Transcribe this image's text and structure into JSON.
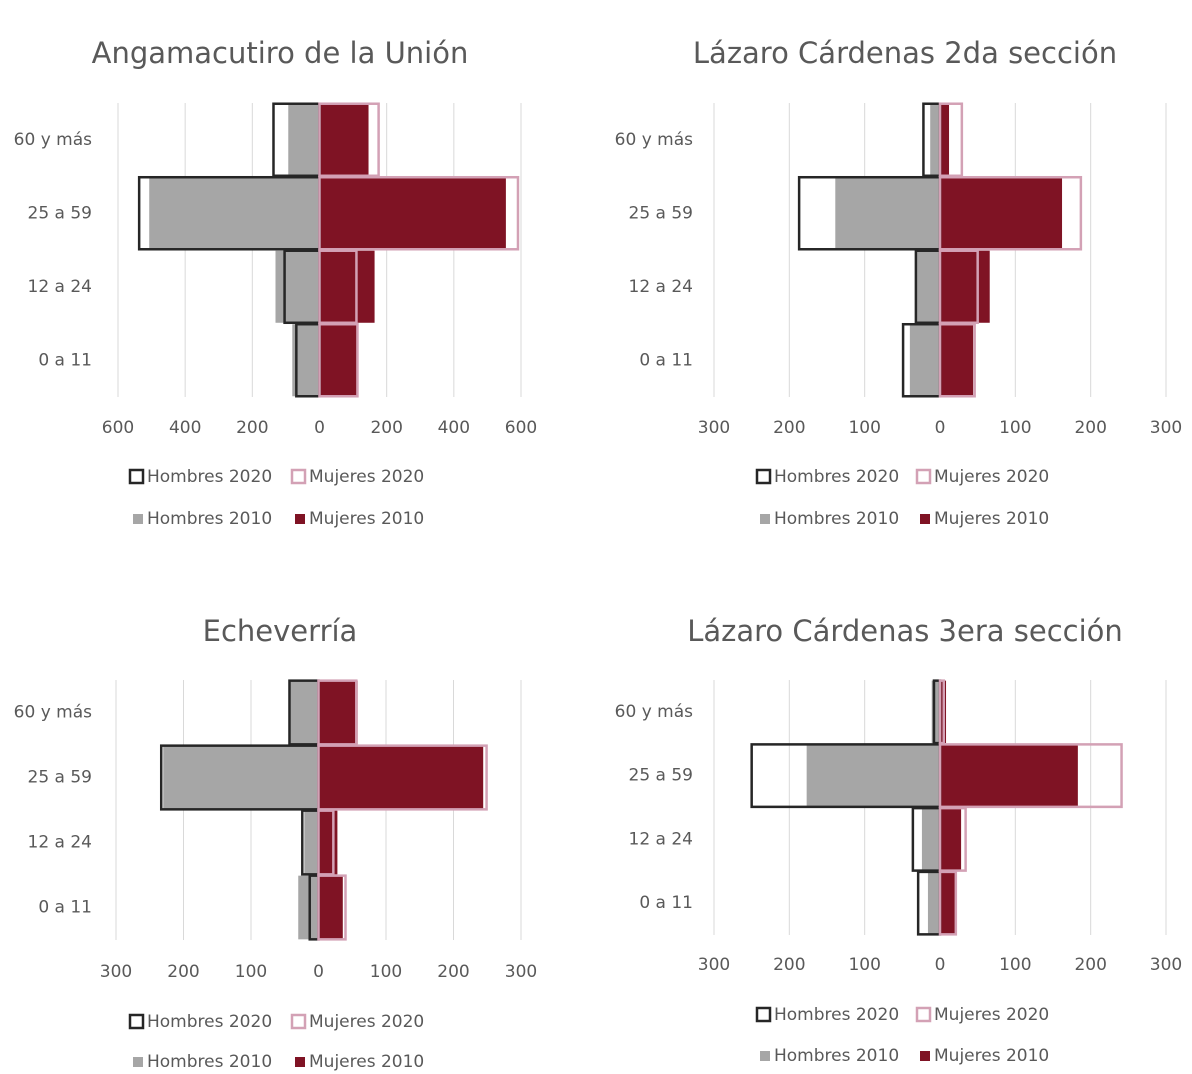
{
  "chart_data": [
    {
      "type": "bar",
      "orientation": "horizontal",
      "title": "Angamacutiro de la Unión",
      "categories": [
        "0 a 11",
        "12 a 24",
        "25 a 59",
        "60 y más"
      ],
      "series": [
        {
          "name": "Hombres 2020",
          "color": "#262626",
          "kind": "outline",
          "values": [
            -69,
            -104,
            -537,
            -137
          ]
        },
        {
          "name": "Mujeres 2020",
          "color": "#d3a1b5",
          "kind": "outline",
          "values": [
            113,
            110,
            591,
            176
          ]
        },
        {
          "name": "Hombres 2010",
          "color": "#a6a6a6",
          "kind": "fill",
          "values": [
            -81,
            -131,
            -507,
            -93
          ]
        },
        {
          "name": "Mujeres 2010",
          "color": "#7f1324",
          "kind": "fill",
          "values": [
            110,
            164,
            555,
            146
          ]
        }
      ],
      "xlim": [
        -600,
        600
      ],
      "xticks": [
        {
          "value": -600,
          "label": "600"
        },
        {
          "value": -400,
          "label": "400"
        },
        {
          "value": -200,
          "label": "200"
        },
        0,
        200,
        400,
        600
      ],
      "grid": true
    },
    {
      "type": "bar",
      "orientation": "horizontal",
      "title": "Lázaro Cárdenas 2da sección",
      "categories": [
        "0 a 11",
        "12 a 24",
        "25 a 59",
        "60 y más"
      ],
      "series": [
        {
          "name": "Hombres 2020",
          "color": "#262626",
          "kind": "outline",
          "values": [
            -49,
            -32,
            -187,
            -22
          ]
        },
        {
          "name": "Mujeres 2020",
          "color": "#d3a1b5",
          "kind": "outline",
          "values": [
            46,
            50,
            187,
            29
          ]
        },
        {
          "name": "Hombres 2010",
          "color": "#a6a6a6",
          "kind": "fill",
          "values": [
            -40,
            -32,
            -139,
            -13
          ]
        },
        {
          "name": "Mujeres 2010",
          "color": "#7f1324",
          "kind": "fill",
          "values": [
            44,
            66,
            162,
            12
          ]
        }
      ],
      "xlim": [
        -300,
        300
      ],
      "xticks": [
        {
          "value": -300,
          "label": "300"
        },
        {
          "value": -200,
          "label": "200"
        },
        {
          "value": -100,
          "label": "100"
        },
        0,
        100,
        200,
        300
      ],
      "grid": true
    },
    {
      "type": "bar",
      "orientation": "horizontal",
      "title": "Echeverría",
      "categories": [
        "0 a 11",
        "12 a 24",
        "25 a 59",
        "60 y más"
      ],
      "series": [
        {
          "name": "Hombres 2020",
          "color": "#262626",
          "kind": "outline",
          "values": [
            -13,
            -24,
            -233,
            -43
          ]
        },
        {
          "name": "Mujeres 2020",
          "color": "#d3a1b5",
          "kind": "outline",
          "values": [
            40,
            22,
            249,
            56
          ]
        },
        {
          "name": "Hombres 2010",
          "color": "#a6a6a6",
          "kind": "fill",
          "values": [
            -30,
            -21,
            -230,
            -43
          ]
        },
        {
          "name": "Mujeres 2010",
          "color": "#7f1324",
          "kind": "fill",
          "values": [
            36,
            28,
            244,
            58
          ]
        }
      ],
      "xlim": [
        -300,
        300
      ],
      "xticks": [
        {
          "value": -300,
          "label": "300"
        },
        {
          "value": -200,
          "label": "200"
        },
        {
          "value": -100,
          "label": "100"
        },
        0,
        100,
        200,
        300
      ],
      "grid": true
    },
    {
      "type": "bar",
      "orientation": "horizontal",
      "title": "Lázaro Cárdenas 3era sección",
      "categories": [
        "0 a 11",
        "12 a 24",
        "25 a 59",
        "60 y más"
      ],
      "series": [
        {
          "name": "Hombres 2020",
          "color": "#262626",
          "kind": "outline",
          "values": [
            -29,
            -36,
            -250,
            -8
          ]
        },
        {
          "name": "Mujeres 2020",
          "color": "#d3a1b5",
          "kind": "outline",
          "values": [
            21,
            34,
            241,
            5
          ]
        },
        {
          "name": "Hombres 2010",
          "color": "#a6a6a6",
          "kind": "fill",
          "values": [
            -16,
            -24,
            -177,
            -11
          ]
        },
        {
          "name": "Mujeres 2010",
          "color": "#7f1324",
          "kind": "fill",
          "values": [
            22,
            28,
            183,
            8
          ]
        }
      ],
      "xlim": [
        -300,
        300
      ],
      "xticks": [
        {
          "value": -300,
          "label": "300"
        },
        {
          "value": -200,
          "label": "200"
        },
        {
          "value": -100,
          "label": "100"
        },
        0,
        100,
        200,
        300
      ],
      "grid": true
    }
  ]
}
